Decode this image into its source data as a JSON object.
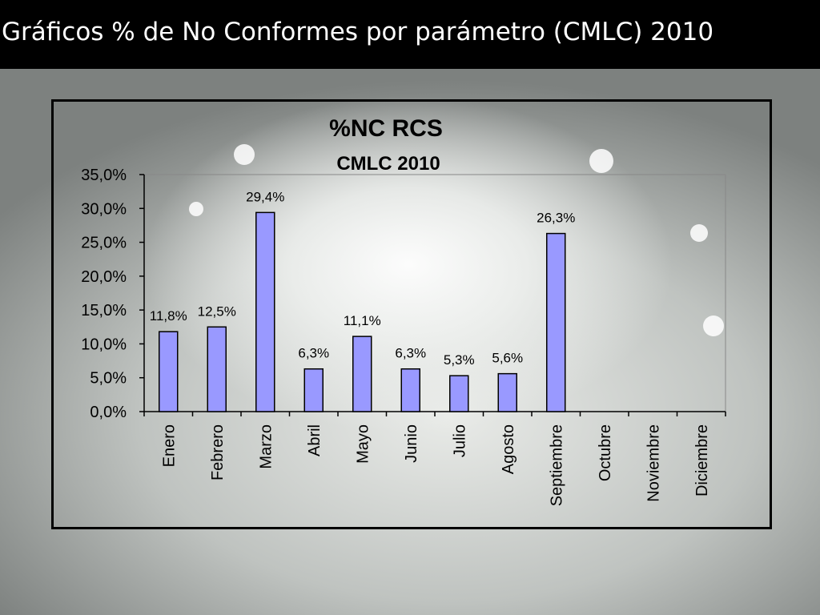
{
  "slide": {
    "title": "Gráficos % de No Conformes por parámetro (CMLC) 2010"
  },
  "colors": {
    "bar_fill": "#9999ff",
    "bar_stroke": "#000000",
    "title_bar": "#000000",
    "title_text": "#ffffff"
  },
  "chart_data": {
    "type": "bar",
    "title": "%NC RCS",
    "subtitle": "CMLC 2010",
    "categories": [
      "Enero",
      "Febrero",
      "Marzo",
      "Abril",
      "Mayo",
      "Junio",
      "Julio",
      "Agosto",
      "Septiembre",
      "Octubre",
      "Noviembre",
      "Diciembre"
    ],
    "values": [
      11.8,
      12.5,
      29.4,
      6.3,
      11.1,
      6.3,
      5.3,
      5.6,
      26.3,
      null,
      null,
      null
    ],
    "data_labels": [
      "11,8%",
      "12,5%",
      "29,4%",
      "6,3%",
      "11,1%",
      "6,3%",
      "5,3%",
      "5,6%",
      "26,3%",
      "",
      "",
      ""
    ],
    "ylim": [
      0,
      35
    ],
    "yticks": [
      0,
      5,
      10,
      15,
      20,
      25,
      30,
      35
    ],
    "ytick_labels": [
      "0,0%",
      "5,0%",
      "10,0%",
      "15,0%",
      "20,0%",
      "25,0%",
      "30,0%",
      "35,0%"
    ],
    "xlabel": "",
    "ylabel": "",
    "grid": false,
    "legend": "none"
  }
}
